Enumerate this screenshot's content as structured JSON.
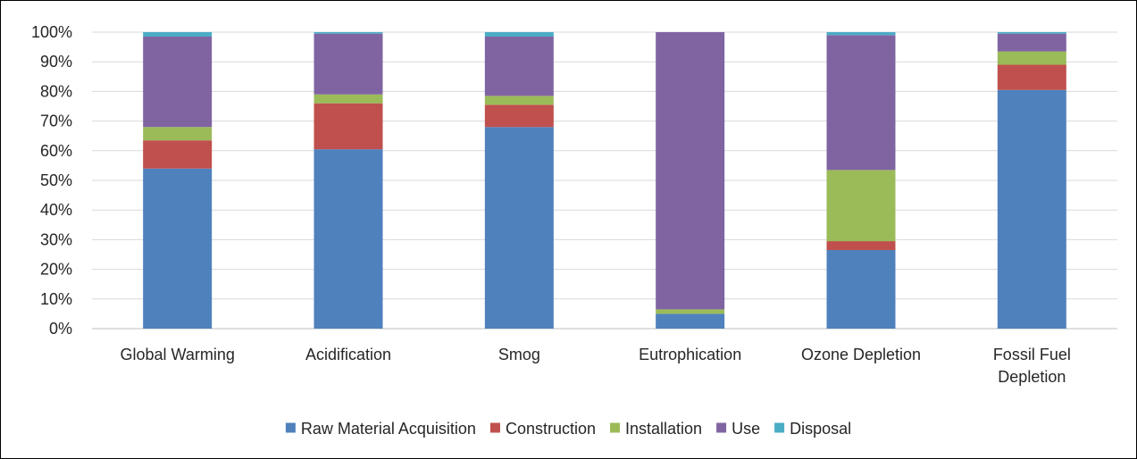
{
  "chart_data": {
    "type": "bar",
    "stacked": true,
    "categories": [
      [
        "Global Warming"
      ],
      [
        "Acidification"
      ],
      [
        "Smog"
      ],
      [
        "Eutrophication"
      ],
      [
        "Ozone Depletion"
      ],
      [
        "Fossil Fuel",
        "Depletion"
      ]
    ],
    "series": [
      {
        "name": "Raw Material Acquisition",
        "color": "#4F81BD",
        "values": [
          54,
          60.5,
          68,
          5,
          26.5,
          80.5
        ]
      },
      {
        "name": "Construction",
        "color": "#C0504D",
        "values": [
          9.5,
          15.5,
          7.5,
          0,
          3,
          8.5
        ]
      },
      {
        "name": "Installation",
        "color": "#9BBB59",
        "values": [
          4.5,
          3,
          3,
          1.5,
          24,
          4.5
        ]
      },
      {
        "name": "Use",
        "color": "#8064A2",
        "values": [
          30.5,
          20.5,
          20,
          93.5,
          45.5,
          6
        ]
      },
      {
        "name": "Disposal",
        "color": "#4BACC6",
        "values": [
          1.5,
          0.5,
          1.5,
          0,
          1,
          0.5
        ]
      }
    ],
    "y_ticks": [
      "0%",
      "10%",
      "20%",
      "30%",
      "40%",
      "50%",
      "60%",
      "70%",
      "80%",
      "90%",
      "100%"
    ],
    "ylim": [
      0,
      100
    ],
    "grid": true,
    "legend_position": "bottom"
  }
}
